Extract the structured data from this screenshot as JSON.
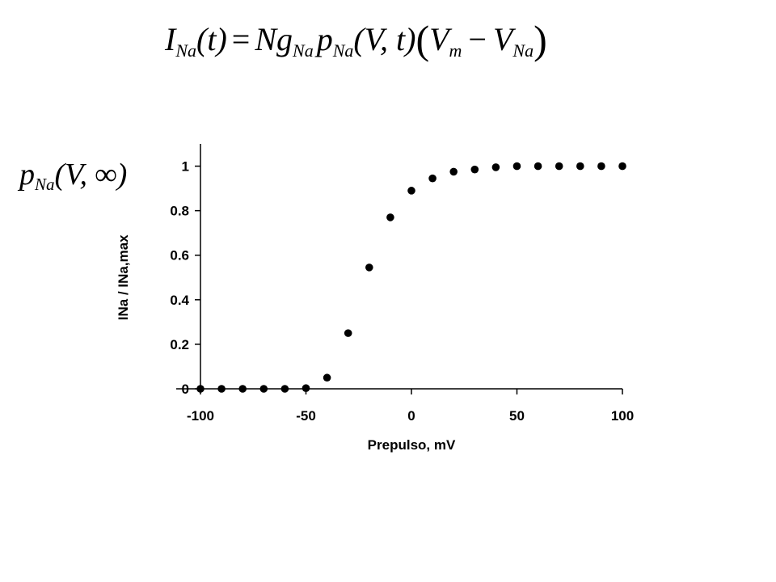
{
  "equation": {
    "current": "I",
    "current_sub": "Na",
    "t_arg": "(t)",
    "equals": "=",
    "channel_count": "N",
    "conductance": "g",
    "conductance_sub": "Na",
    "probability": "p",
    "probability_sub": "Na",
    "probability_arg": "(V, t)",
    "driving_open": "(",
    "membrane_v": "V",
    "membrane_v_sub": "m",
    "minus": "−",
    "reversal_v": "V",
    "reversal_v_sub": "Na",
    "driving_close": ")"
  },
  "steady_state_label": {
    "symbol": "p",
    "sub": "Na",
    "arg": "(V, ∞)"
  },
  "chart_data": {
    "type": "scatter",
    "title": "",
    "xlabel": "Prepulso, mV",
    "ylabel": "INa / INa,max",
    "xlim": [
      -100,
      100
    ],
    "ylim": [
      0,
      1.1
    ],
    "x_ticks": [
      -100,
      -50,
      0,
      50,
      100
    ],
    "x_tick_labels": [
      "-100",
      "-50",
      "0",
      "50",
      "100"
    ],
    "y_ticks": [
      0,
      0.2,
      0.4,
      0.6,
      0.8,
      1
    ],
    "y_tick_labels": [
      "0",
      "0.2",
      "0.4",
      "0.6",
      "0.8",
      "1"
    ],
    "grid": false,
    "marker_color": "#000000",
    "series": [
      {
        "x": [
          -100,
          -90,
          -80,
          -70,
          -60,
          -50,
          -40,
          -30,
          -20,
          -10,
          0,
          10,
          20,
          30,
          40,
          50,
          60,
          70,
          80,
          90,
          100
        ],
        "y": [
          0,
          0,
          0,
          0,
          0,
          0.003,
          0.05,
          0.25,
          0.545,
          0.77,
          0.89,
          0.945,
          0.975,
          0.985,
          0.995,
          1.0,
          1.0,
          1.0,
          1.0,
          1.0,
          1.0
        ]
      }
    ]
  }
}
